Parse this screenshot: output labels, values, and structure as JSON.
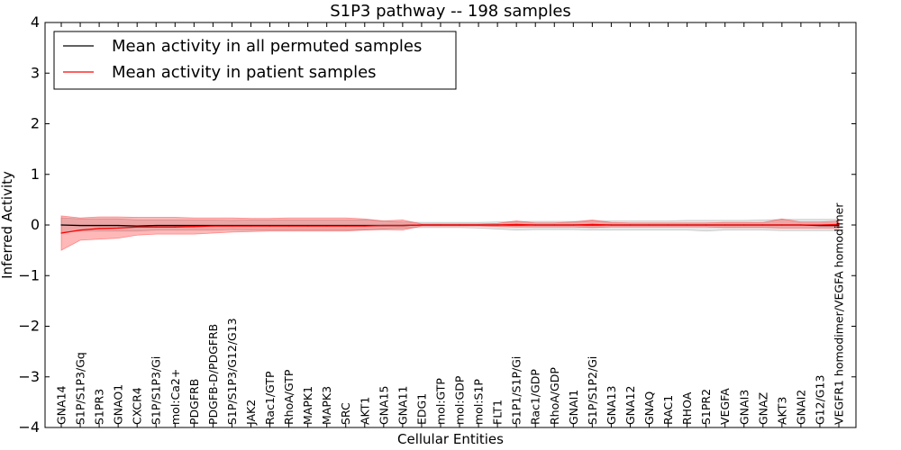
{
  "chart_data": {
    "type": "line",
    "title": "S1P3 pathway -- 198 samples",
    "xlabel": "Cellular Entities",
    "ylabel": "Inferred Activity",
    "ylim": [
      -4,
      4
    ],
    "yticks": [
      -4,
      -3,
      -2,
      -1,
      0,
      1,
      2,
      3,
      4
    ],
    "ytick_labels": [
      "−4",
      "−3",
      "−2",
      "−1",
      "0",
      "1",
      "2",
      "3",
      "4"
    ],
    "categories": [
      "GNA14",
      "S1P/S1P3/Gq",
      "S1PR3",
      "GNAO1",
      "CXCR4",
      "S1P/S1P3/Gi",
      "mol:Ca2+",
      "PDGFRB",
      "PDGFB-D/PDGFRB",
      "S1P/S1P3/G12/G13",
      "JAK2",
      "Rac1/GTP",
      "RhoA/GTP",
      "MAPK1",
      "MAPK3",
      "SRC",
      "AKT1",
      "GNA15",
      "GNA11",
      "EDG1",
      "mol:GTP",
      "mol:GDP",
      "mol:S1P",
      "FLT1",
      "S1P1/S1P/Gi",
      "Rac1/GDP",
      "RhoA/GDP",
      "GNAI1",
      "S1P/S1P2/Gi",
      "GNA13",
      "GNA12",
      "GNAQ",
      "RAC1",
      "RHOA",
      "S1PR2",
      "VEGFA",
      "GNAI3",
      "GNAZ",
      "AKT3",
      "GNAI2",
      "G12/G13",
      "VEGFR1 homodimer/VEGFA homodimer"
    ],
    "legend_position": "top-left",
    "series": [
      {
        "name": "Mean activity in all permuted samples",
        "color": "#000000",
        "values": [
          0.0,
          -0.01,
          -0.01,
          -0.01,
          -0.02,
          -0.01,
          -0.01,
          -0.01,
          -0.01,
          -0.01,
          -0.01,
          -0.01,
          -0.01,
          -0.01,
          -0.01,
          -0.01,
          -0.01,
          -0.01,
          -0.01,
          0.0,
          0.0,
          0.0,
          0.0,
          0.0,
          0.0,
          0.0,
          0.0,
          0.0,
          0.0,
          0.0,
          0.0,
          0.0,
          0.0,
          0.0,
          0.0,
          0.0,
          0.0,
          0.0,
          0.0,
          0.0,
          -0.01,
          -0.01
        ],
        "band_upper": [
          0.14,
          0.12,
          0.12,
          0.12,
          0.1,
          0.1,
          0.1,
          0.1,
          0.1,
          0.09,
          0.1,
          0.1,
          0.1,
          0.1,
          0.1,
          0.1,
          0.1,
          0.08,
          0.06,
          0.05,
          0.05,
          0.05,
          0.05,
          0.06,
          0.07,
          0.07,
          0.07,
          0.07,
          0.08,
          0.08,
          0.08,
          0.08,
          0.08,
          0.09,
          0.09,
          0.09,
          0.09,
          0.1,
          0.11,
          0.11,
          0.11,
          0.11
        ],
        "band_lower": [
          -0.14,
          -0.12,
          -0.12,
          -0.12,
          -0.12,
          -0.1,
          -0.1,
          -0.1,
          -0.1,
          -0.09,
          -0.1,
          -0.1,
          -0.1,
          -0.1,
          -0.1,
          -0.1,
          -0.1,
          -0.08,
          -0.06,
          -0.05,
          -0.05,
          -0.05,
          -0.06,
          -0.08,
          -0.1,
          -0.09,
          -0.09,
          -0.09,
          -0.1,
          -0.1,
          -0.1,
          -0.1,
          -0.1,
          -0.1,
          -0.12,
          -0.1,
          -0.1,
          -0.1,
          -0.11,
          -0.11,
          -0.11,
          -0.11
        ]
      },
      {
        "name": "Mean activity in patient samples",
        "color": "#ff0000",
        "values": [
          -0.16,
          -0.1,
          -0.07,
          -0.06,
          -0.04,
          -0.04,
          -0.04,
          -0.03,
          -0.02,
          -0.02,
          -0.02,
          -0.02,
          -0.02,
          -0.02,
          -0.02,
          -0.02,
          -0.02,
          -0.01,
          -0.01,
          0.0,
          0.0,
          0.0,
          0.0,
          0.0,
          0.01,
          0.0,
          0.0,
          0.0,
          0.01,
          0.0,
          0.0,
          0.0,
          0.0,
          0.0,
          0.0,
          0.0,
          0.0,
          0.0,
          0.0,
          0.0,
          0.0,
          0.01
        ],
        "band_upper": [
          0.18,
          0.14,
          0.16,
          0.16,
          0.15,
          0.15,
          0.15,
          0.14,
          0.14,
          0.14,
          0.13,
          0.13,
          0.14,
          0.14,
          0.14,
          0.14,
          0.12,
          0.08,
          0.1,
          0.02,
          0.02,
          0.02,
          0.02,
          0.03,
          0.08,
          0.04,
          0.04,
          0.06,
          0.1,
          0.05,
          0.04,
          0.04,
          0.04,
          0.04,
          0.04,
          0.05,
          0.05,
          0.05,
          0.12,
          0.06,
          0.06,
          0.08
        ],
        "band_lower": [
          -0.5,
          -0.3,
          -0.28,
          -0.26,
          -0.2,
          -0.18,
          -0.18,
          -0.18,
          -0.16,
          -0.14,
          -0.13,
          -0.12,
          -0.12,
          -0.12,
          -0.12,
          -0.12,
          -0.1,
          -0.09,
          -0.1,
          -0.02,
          -0.02,
          -0.02,
          -0.02,
          -0.03,
          -0.04,
          -0.04,
          -0.04,
          -0.04,
          -0.05,
          -0.04,
          -0.04,
          -0.04,
          -0.04,
          -0.04,
          -0.04,
          -0.05,
          -0.05,
          -0.05,
          -0.06,
          -0.06,
          -0.06,
          -0.06
        ]
      }
    ]
  }
}
